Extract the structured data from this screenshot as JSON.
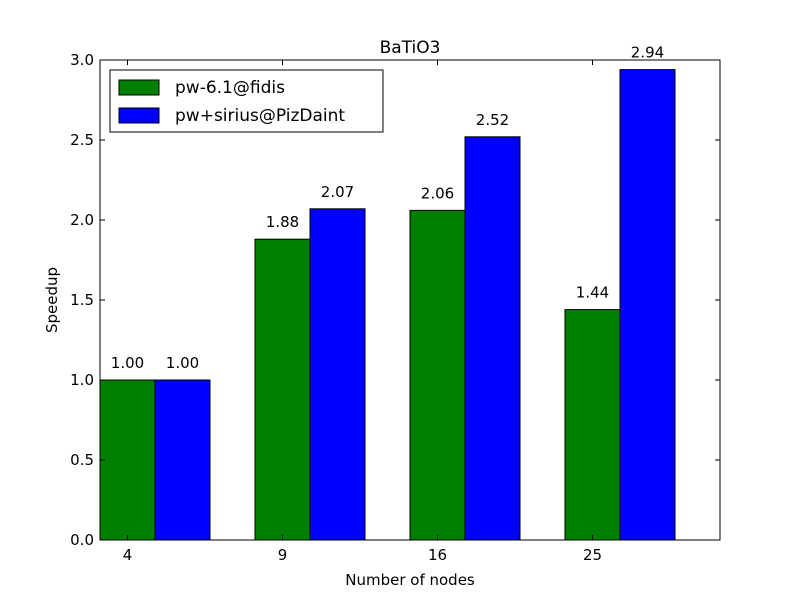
{
  "chart_data": {
    "type": "bar",
    "title": "BaTiO3",
    "xlabel": "Number of nodes",
    "ylabel": "Speedup",
    "categories": [
      "4",
      "9",
      "16",
      "25"
    ],
    "series": [
      {
        "name": "pw-6.1@fidis",
        "values": [
          1.0,
          1.88,
          2.06,
          1.44
        ],
        "color": "#008000"
      },
      {
        "name": "pw+sirius@PizDaint",
        "values": [
          1.0,
          2.07,
          2.52,
          2.94
        ],
        "color": "#0000ff"
      }
    ],
    "data_labels": [
      [
        "1.00",
        "1.88",
        "2.06",
        "1.44"
      ],
      [
        "1.00",
        "2.07",
        "2.52",
        "2.94"
      ]
    ],
    "ylim": [
      0,
      3.0
    ],
    "yticks": [
      "0.0",
      "0.5",
      "1.0",
      "1.5",
      "2.0",
      "2.5",
      "3.0"
    ],
    "grid": false,
    "legend_position": "top-left"
  }
}
